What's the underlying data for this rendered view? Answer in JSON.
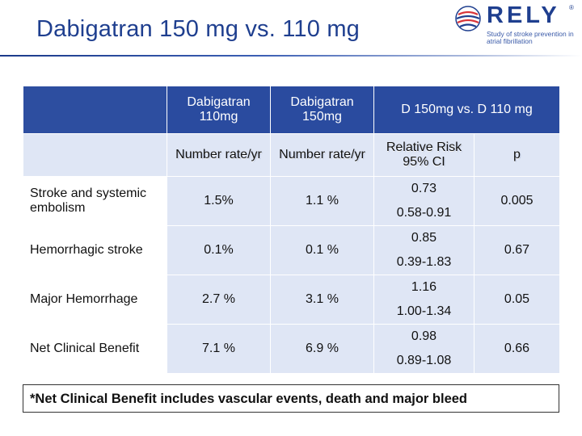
{
  "slide": {
    "title": "Dabigatran 150 mg vs. 110 mg"
  },
  "logo": {
    "name": "RELY",
    "registered": "®",
    "tagline": "Study of stroke prevention in atrial fibrillation",
    "colors": {
      "globe_red": "#d9353a",
      "globe_blue": "#1f3f8f"
    }
  },
  "table": {
    "header_top": {
      "col1": "Dabigatran 110mg",
      "col2": "Dabigatran 150mg",
      "col3": "D 150mg vs. D 110 mg"
    },
    "header_sub": {
      "col1": "Number rate/yr",
      "col2": "Number rate/yr",
      "col3": "Relative Risk 95% CI",
      "col4": "p"
    },
    "rows": [
      {
        "label": "Stroke and systemic embolism",
        "d110": "1.5%",
        "d150": "1.1 %",
        "rr": "0.73",
        "ci": "0.58-0.91",
        "p": "0.005"
      },
      {
        "label": "Hemorrhagic stroke",
        "d110": "0.1%",
        "d150": "0.1 %",
        "rr": "0.85",
        "ci": "0.39-1.83",
        "p": "0.67"
      },
      {
        "label": "Major Hemorrhage",
        "d110": "2.7 %",
        "d150": "3.1 %",
        "rr": "1.16",
        "ci": "1.00-1.34",
        "p": "0.05"
      },
      {
        "label": "Net Clinical Benefit",
        "d110": "7.1 %",
        "d150": "6.9 %",
        "rr": "0.98",
        "ci": "0.89-1.08",
        "p": "0.66"
      }
    ]
  },
  "footnote": "*Net Clinical Benefit includes vascular events, death and major bleed",
  "colors": {
    "title": "#1f3f8f",
    "header_fill": "#2a4b9f",
    "cell_fill": "#dfe6f5"
  }
}
